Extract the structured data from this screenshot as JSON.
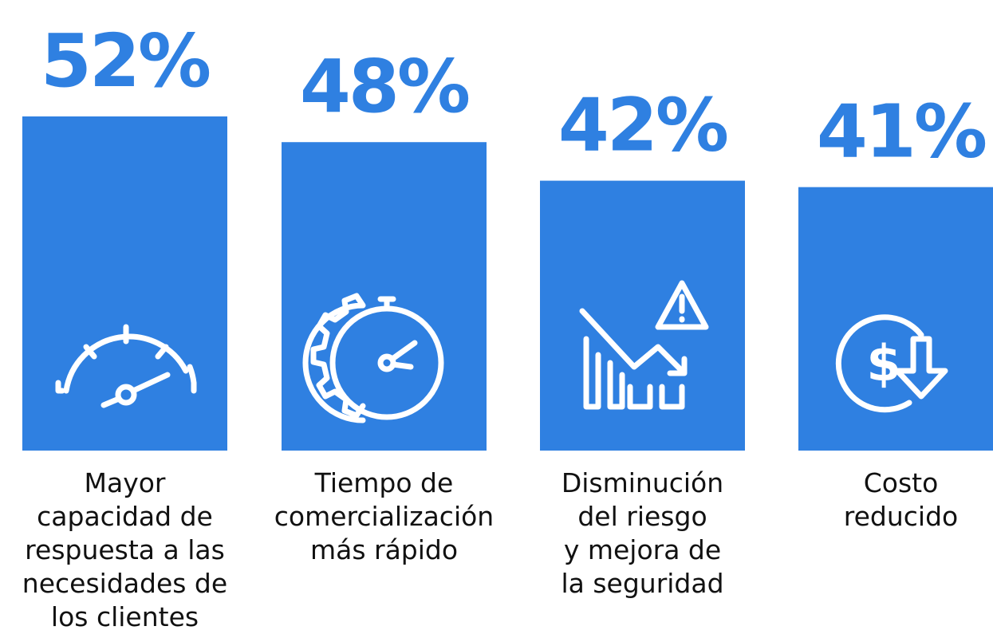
{
  "chart_data": {
    "type": "bar",
    "categories": [
      "Mayor\ncapacidad de\nrespuesta a las\nnecesidades de\nlos clientes",
      "Tiempo de\ncomercialización\nmás rápido",
      "Disminución\ndel riesgo\ny mejora de\nla seguridad",
      "Costo\nreducido"
    ],
    "values": [
      52,
      48,
      42,
      41
    ],
    "value_labels": [
      "52%",
      "48%",
      "42%",
      "41%"
    ],
    "color": "#2f80e1"
  }
}
